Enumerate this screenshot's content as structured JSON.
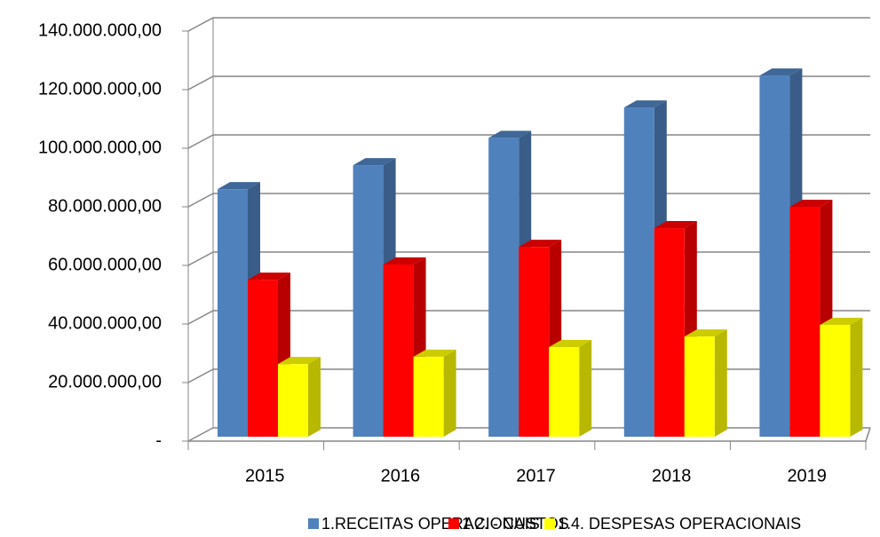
{
  "chart_data": {
    "type": "bar3d",
    "categories": [
      "2015",
      "2016",
      "2017",
      "2018",
      "2019"
    ],
    "series": [
      {
        "name": "1.RECEITAS OPERACIONAIS",
        "color": "#4f81bd",
        "values": [
          84500000,
          92700000,
          102000000,
          112400000,
          123300000
        ]
      },
      {
        "name": "1.2. - CUSTOS",
        "color": "#ff0000",
        "values": [
          53600000,
          58800000,
          64800000,
          71200000,
          78500000
        ]
      },
      {
        "name": "1.4. DESPESAS OPERACIONAIS",
        "color": "#ffff00",
        "values": [
          24800000,
          27300000,
          30600000,
          34200000,
          38200000
        ]
      }
    ],
    "ylim": [
      0,
      140000000
    ],
    "yticks": [
      {
        "value": 0,
        "label": "-"
      },
      {
        "value": 20000000,
        "label": "20.000.000,00"
      },
      {
        "value": 40000000,
        "label": "40.000.000,00"
      },
      {
        "value": 60000000,
        "label": "60.000.000,00"
      },
      {
        "value": 80000000,
        "label": "80.000.000,00"
      },
      {
        "value": 100000000,
        "label": "100.000.000,00"
      },
      {
        "value": 120000000,
        "label": "120.000.000,00"
      },
      {
        "value": 140000000,
        "label": "140.000.000,00"
      }
    ],
    "grid": true,
    "legend": "bottom"
  }
}
